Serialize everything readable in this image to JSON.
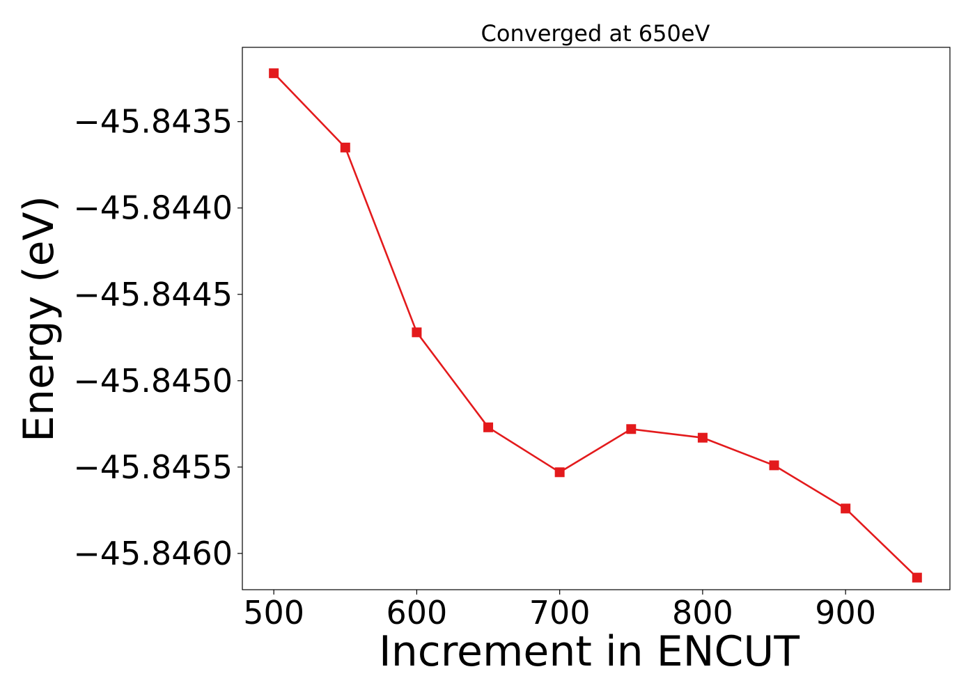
{
  "chart_data": {
    "type": "line",
    "title": "Converged at 650eV",
    "xlabel": "Increment in ENCUT",
    "ylabel": "Energy (eV)",
    "x": [
      500,
      550,
      600,
      650,
      700,
      750,
      800,
      850,
      900,
      950
    ],
    "series": [
      {
        "values": [
          -45.84322,
          -45.84365,
          -45.84472,
          -45.84527,
          -45.84553,
          -45.84528,
          -45.84533,
          -45.84549,
          -45.84574,
          -45.84614
        ],
        "color": "#e31a1c",
        "marker": "square"
      }
    ],
    "xlim": [
      478,
      973
    ],
    "ylim": [
      -45.84621,
      -45.84307
    ],
    "xticks": [
      500,
      600,
      700,
      800,
      900
    ],
    "xtick_labels": [
      "500",
      "600",
      "700",
      "800",
      "900"
    ],
    "yticks": [
      -45.8435,
      -45.844,
      -45.8445,
      -45.845,
      -45.8455,
      -45.846
    ],
    "ytick_labels": [
      "−45.8435",
      "−45.8440",
      "−45.8445",
      "−45.8450",
      "−45.8455",
      "−45.8460"
    ],
    "grid": false,
    "legend": false
  }
}
